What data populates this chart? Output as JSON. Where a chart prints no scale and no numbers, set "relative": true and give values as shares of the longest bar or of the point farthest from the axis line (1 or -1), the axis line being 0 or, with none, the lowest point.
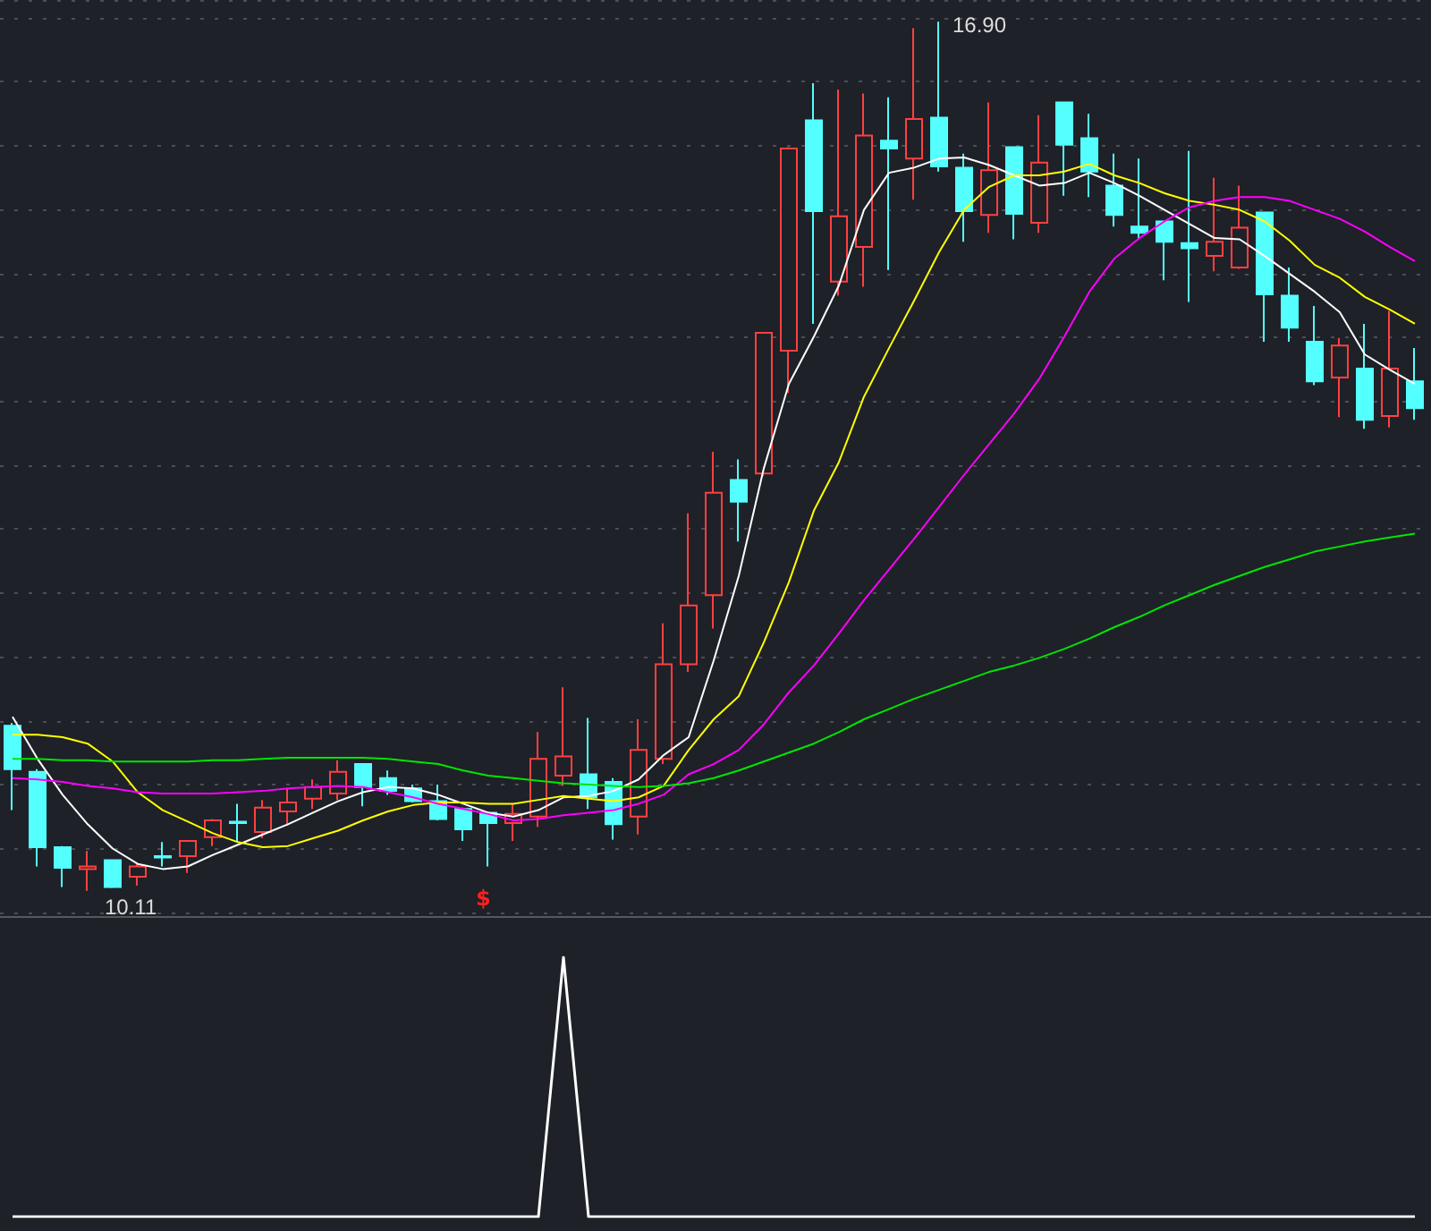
{
  "chart_data": [
    {
      "type": "candlestick",
      "categories": [
        null,
        null,
        null,
        null,
        null,
        null,
        null,
        null,
        null,
        null,
        null,
        null,
        null,
        null,
        null,
        null,
        null,
        null,
        null,
        null,
        null,
        null,
        null,
        null,
        null,
        null,
        null,
        null,
        null,
        null,
        null,
        null,
        null,
        null,
        null,
        null,
        null,
        null,
        null,
        null,
        null,
        null,
        null,
        null,
        null,
        null,
        null,
        null,
        null,
        null,
        null,
        null,
        null,
        null,
        null,
        null,
        null
      ],
      "ohlc": [
        [
          11.4,
          11.42,
          10.74,
          11.06
        ],
        [
          11.04,
          11.06,
          10.3,
          10.45
        ],
        [
          10.45,
          10.46,
          10.14,
          10.29
        ],
        [
          10.28,
          10.42,
          10.11,
          10.3
        ],
        [
          10.35,
          10.35,
          10.13,
          10.14
        ],
        [
          10.22,
          10.32,
          10.15,
          10.3
        ],
        [
          10.38,
          10.49,
          10.3,
          10.37
        ],
        [
          10.38,
          10.5,
          10.25,
          10.5
        ],
        [
          10.53,
          10.67,
          10.46,
          10.66
        ],
        [
          10.65,
          10.79,
          10.49,
          10.64
        ],
        [
          10.57,
          10.82,
          10.52,
          10.76
        ],
        [
          10.73,
          10.91,
          10.62,
          10.8
        ],
        [
          10.83,
          10.98,
          10.75,
          10.92
        ],
        [
          10.87,
          11.13,
          10.82,
          11.04
        ],
        [
          11.1,
          11.1,
          10.77,
          10.92
        ],
        [
          10.99,
          11.05,
          10.86,
          10.89
        ],
        [
          10.91,
          10.94,
          10.8,
          10.81
        ],
        [
          10.81,
          10.94,
          10.66,
          10.67
        ],
        [
          10.75,
          10.76,
          10.5,
          10.59
        ],
        [
          10.72,
          10.73,
          10.3,
          10.64
        ],
        [
          10.64,
          10.79,
          10.5,
          10.71
        ],
        [
          10.69,
          11.35,
          10.61,
          11.14
        ],
        [
          11.01,
          11.7,
          10.93,
          11.16
        ],
        [
          11.02,
          11.46,
          10.75,
          10.84
        ],
        [
          10.96,
          10.99,
          10.51,
          10.63
        ],
        [
          10.69,
          11.45,
          10.55,
          11.21
        ],
        [
          11.14,
          12.2,
          11.1,
          11.88
        ],
        [
          11.88,
          13.06,
          11.82,
          12.34
        ],
        [
          12.42,
          13.54,
          12.16,
          13.22
        ],
        [
          13.32,
          13.48,
          12.84,
          13.15
        ],
        [
          13.37,
          14.47,
          13.35,
          14.47
        ],
        [
          14.33,
          15.92,
          14.0,
          15.91
        ],
        [
          16.13,
          16.42,
          14.54,
          15.42
        ],
        [
          14.87,
          16.37,
          14.76,
          15.38
        ],
        [
          15.14,
          16.34,
          14.83,
          16.01
        ],
        [
          15.97,
          16.31,
          14.96,
          15.91
        ],
        [
          15.83,
          16.85,
          15.51,
          16.14
        ],
        [
          16.15,
          16.9,
          15.73,
          15.77
        ],
        [
          15.76,
          15.87,
          15.18,
          15.42
        ],
        [
          15.39,
          16.27,
          15.25,
          15.74
        ],
        [
          15.92,
          15.92,
          15.2,
          15.4
        ],
        [
          15.33,
          16.17,
          15.25,
          15.8
        ],
        [
          16.27,
          16.27,
          15.54,
          15.94
        ],
        [
          15.99,
          16.18,
          15.53,
          15.73
        ],
        [
          15.62,
          15.87,
          15.3,
          15.39
        ],
        [
          15.3,
          15.83,
          15.21,
          15.25
        ],
        [
          15.34,
          15.34,
          14.88,
          15.18
        ],
        [
          15.17,
          15.89,
          14.71,
          15.13
        ],
        [
          15.07,
          15.68,
          14.95,
          15.18
        ],
        [
          14.98,
          15.62,
          14.97,
          15.29
        ],
        [
          15.41,
          15.41,
          14.4,
          14.77
        ],
        [
          14.76,
          14.98,
          14.4,
          14.51
        ],
        [
          14.4,
          14.68,
          14.06,
          14.09
        ],
        [
          14.12,
          14.43,
          13.81,
          14.37
        ],
        [
          14.19,
          14.54,
          13.72,
          13.79
        ],
        [
          13.82,
          14.64,
          13.73,
          14.19
        ],
        [
          14.09,
          14.35,
          13.79,
          13.88
        ]
      ],
      "colors": [
        "#54ffff",
        "#54ffff",
        "#54ffff",
        "#ff4040",
        "#54ffff",
        "#ff4040",
        "#54ffff",
        "#ff4040",
        "#ff4040",
        "#54ffff",
        "#ff4040",
        "#ff4040",
        "#ff4040",
        "#ff4040",
        "#54ffff",
        "#54ffff",
        "#54ffff",
        "#54ffff",
        "#54ffff",
        "#54ffff",
        "#ff4040",
        "#ff4040",
        "#ff4040",
        "#54ffff",
        "#54ffff",
        "#ff4040",
        "#ff4040",
        "#ff4040",
        "#ff4040",
        "#54ffff",
        "#ff4040",
        "#ff4040",
        "#54ffff",
        "#ff4040",
        "#ff4040",
        "#54ffff",
        "#ff4040",
        "#54ffff",
        "#54ffff",
        "#ff4040",
        "#54ffff",
        "#ff4040",
        "#54ffff",
        "#54ffff",
        "#54ffff",
        "#54ffff",
        "#54ffff",
        "#54ffff",
        "#ff4040",
        "#ff4040",
        "#54ffff",
        "#54ffff",
        "#54ffff",
        "#ff4040",
        "#54ffff",
        "#ff4040",
        "#54ffff"
      ],
      "series": [
        {
          "type": "line",
          "color": "#ffffff",
          "values": [
            11.47,
            11.14,
            10.86,
            10.63,
            10.44,
            10.32,
            10.28,
            10.3,
            10.39,
            10.47,
            10.55,
            10.63,
            10.72,
            10.81,
            10.88,
            10.92,
            10.91,
            10.86,
            10.79,
            10.72,
            10.69,
            10.74,
            10.84,
            10.85,
            10.89,
            10.98,
            11.17,
            11.31,
            11.91,
            12.57,
            13.41,
            14.07,
            14.44,
            14.84,
            15.43,
            15.72,
            15.76,
            15.83,
            15.84,
            15.78,
            15.7,
            15.62,
            15.64,
            15.72,
            15.64,
            15.54,
            15.43,
            15.32,
            15.21,
            15.2,
            15.07,
            14.93,
            14.79,
            14.63,
            14.3,
            14.18,
            14.07
          ]
        },
        {
          "type": "line",
          "color": "#ffff00",
          "values": [
            11.33,
            11.33,
            11.31,
            11.26,
            11.12,
            10.88,
            10.74,
            10.65,
            10.56,
            10.49,
            10.45,
            10.46,
            10.52,
            10.58,
            10.66,
            10.73,
            10.78,
            10.8,
            10.8,
            10.79,
            10.79,
            10.82,
            10.85,
            10.83,
            10.81,
            10.84,
            10.93,
            11.21,
            11.45,
            11.63,
            12.05,
            12.52,
            13.08,
            13.46,
            13.97,
            14.35,
            14.72,
            15.1,
            15.43,
            15.61,
            15.7,
            15.7,
            15.73,
            15.79,
            15.7,
            15.64,
            15.56,
            15.5,
            15.47,
            15.43,
            15.34,
            15.19,
            15.0,
            14.9,
            14.75,
            14.65,
            14.54
          ]
        },
        {
          "type": "line",
          "color": "#ff00ff",
          "values": [
            10.99,
            10.98,
            10.96,
            10.93,
            10.91,
            10.88,
            10.87,
            10.87,
            10.87,
            10.88,
            10.89,
            10.91,
            10.92,
            10.93,
            10.92,
            10.88,
            10.84,
            10.79,
            10.75,
            10.71,
            10.66,
            10.67,
            10.7,
            10.72,
            10.74,
            10.79,
            10.86,
            11.02,
            11.1,
            11.21,
            11.41,
            11.66,
            11.87,
            12.12,
            12.38,
            12.62,
            12.86,
            13.11,
            13.36,
            13.6,
            13.84,
            14.11,
            14.44,
            14.79,
            15.05,
            15.21,
            15.34,
            15.45,
            15.5,
            15.53,
            15.53,
            15.5,
            15.43,
            15.36,
            15.26,
            15.14,
            15.03
          ]
        },
        {
          "type": "line",
          "color": "#00e600",
          "values": [
            11.14,
            11.14,
            11.13,
            11.13,
            11.12,
            11.12,
            11.12,
            11.12,
            11.13,
            11.13,
            11.14,
            11.15,
            11.15,
            11.15,
            11.15,
            11.14,
            11.12,
            11.1,
            11.05,
            11.01,
            10.99,
            10.97,
            10.95,
            10.94,
            10.93,
            10.92,
            10.93,
            10.95,
            10.99,
            11.05,
            11.12,
            11.19,
            11.26,
            11.35,
            11.45,
            11.53,
            11.61,
            11.68,
            11.75,
            11.82,
            11.87,
            11.93,
            12.0,
            12.08,
            12.17,
            12.25,
            12.34,
            12.42,
            12.5,
            12.57,
            12.64,
            12.7,
            12.76,
            12.8,
            12.84,
            12.87,
            12.9
          ]
        }
      ],
      "grid": "y",
      "marker": "none",
      "line_style": "solid",
      "annotations": [
        {
          "text": "10.11",
          "y": 10.11
        },
        {
          "text": "16.90"
        },
        "$"
      ]
    },
    {
      "type": "line",
      "relative": true,
      "categories": [
        null,
        null,
        null,
        null,
        null,
        null,
        null,
        null,
        null,
        null,
        null,
        null,
        null,
        null,
        null,
        null,
        null,
        null,
        null,
        null,
        null,
        null,
        null,
        null,
        null,
        null,
        null,
        null,
        null,
        null,
        null,
        null,
        null,
        null,
        null,
        null,
        null,
        null,
        null,
        null,
        null,
        null,
        null,
        null,
        null,
        null,
        null,
        null,
        null,
        null,
        null,
        null,
        null,
        null,
        null,
        null,
        null
      ],
      "series": [
        {
          "color": "#ffffff",
          "values": [
            0,
            0,
            0,
            0,
            0,
            0,
            0,
            0,
            0,
            0,
            0,
            0,
            0,
            0,
            0,
            0,
            0,
            0,
            0,
            0,
            0,
            0,
            1,
            0,
            0,
            0,
            0,
            0,
            0,
            0,
            0,
            0,
            0,
            0,
            0,
            0,
            0,
            0,
            0,
            0,
            0,
            0,
            0,
            0,
            0,
            0,
            0,
            0,
            0,
            0,
            0,
            0,
            0,
            0,
            0,
            0,
            0
          ]
        }
      ],
      "marker": "none",
      "line_style": "solid"
    }
  ]
}
